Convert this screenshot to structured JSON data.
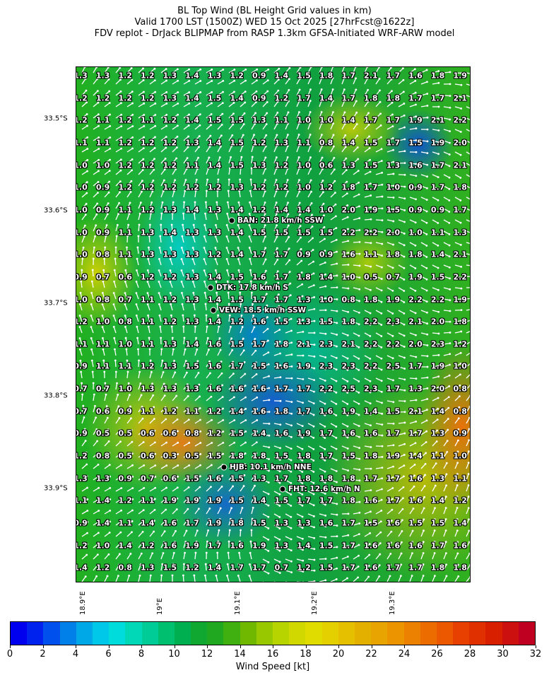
{
  "title": {
    "line1": "BL Top Wind (BL Height Grid values in km)",
    "line2": "Valid 1700 LST (1500Z) WED 15 Oct 2025 [27hrFcst@1622z]",
    "line3": "FDV replot - DrJack BLIPMAP from RASP 1.3km GFSA-Initiated WRF-ARW model"
  },
  "lat_labels": [
    "33.5°S",
    "33.6°S",
    "33.7°S",
    "33.8°S",
    "33.9°S"
  ],
  "lon_labels": [
    "18.9°E",
    "19°E",
    "19.1°E",
    "19.2°E",
    "19.3°E"
  ],
  "grid_values": [
    [
      "1.3",
      "1.3",
      "1.2",
      "1.2",
      "1.3",
      "1.4",
      "1.3",
      "1.2",
      "0.9",
      "1.4",
      "1.5",
      "1.8",
      "1.7",
      "2.1",
      "1.7",
      "1.6",
      "1.8",
      "1.9"
    ],
    [
      "1.2",
      "1.2",
      "1.2",
      "1.2",
      "1.3",
      "1.4",
      "1.5",
      "1.4",
      "0.9",
      "1.2",
      "1.7",
      "1.4",
      "1.7",
      "1.8",
      "1.8",
      "1.7",
      "1.7",
      "2.1"
    ],
    [
      "1.2",
      "1.1",
      "1.2",
      "1.1",
      "1.2",
      "1.4",
      "1.5",
      "1.5",
      "1.3",
      "1.1",
      "1.0",
      "1.0",
      "1.4",
      "1.7",
      "1.7",
      "1.9",
      "2.1",
      "2.2"
    ],
    [
      "1.1",
      "1.1",
      "1.2",
      "1.2",
      "1.2",
      "1.3",
      "1.4",
      "1.5",
      "1.2",
      "1.3",
      "1.1",
      "0.8",
      "1.4",
      "1.5",
      "1.7",
      "1.5",
      "1.9",
      "2.0"
    ],
    [
      "1.0",
      "1.0",
      "1.2",
      "1.2",
      "1.2",
      "1.1",
      "1.4",
      "1.5",
      "1.3",
      "1.2",
      "1.0",
      "0.6",
      "1.3",
      "1.5",
      "1.3",
      "1.6",
      "1.7",
      "2.1"
    ],
    [
      "1.0",
      "0.9",
      "1.2",
      "1.2",
      "1.2",
      "1.2",
      "1.2",
      "1.3",
      "1.2",
      "1.2",
      "1.0",
      "1.2",
      "1.8",
      "1.7",
      "1.0",
      "0.9",
      "1.7",
      "1.8"
    ],
    [
      "1.0",
      "0.9",
      "1.1",
      "1.2",
      "1.3",
      "1.4",
      "1.3",
      "1.4",
      "1.2",
      "1.4",
      "1.4",
      "1.0",
      "2.0",
      "1.9",
      "1.5",
      "0.9",
      "0.9",
      "1.7"
    ],
    [
      "1.0",
      "0.9",
      "1.1",
      "1.3",
      "1.4",
      "1.3",
      "1.3",
      "1.4",
      "1.5",
      "1.5",
      "1.5",
      "1.5",
      "2.2",
      "2.2",
      "2.0",
      "1.0",
      "1.1",
      "1.3"
    ],
    [
      "1.0",
      "0.8",
      "1.1",
      "1.3",
      "1.3",
      "1.3",
      "1.2",
      "1.4",
      "1.7",
      "1.7",
      "0.9",
      "0.9",
      "1.6",
      "1.1",
      "1.8",
      "1.8",
      "1.4",
      "2.1"
    ],
    [
      "0.9",
      "0.7",
      "0.6",
      "1.2",
      "1.2",
      "1.3",
      "1.4",
      "1.5",
      "1.6",
      "1.7",
      "1.8",
      "1.4",
      "1.0",
      "0.5",
      "0.7",
      "1.9",
      "1.5",
      "2.2"
    ],
    [
      "1.0",
      "0.8",
      "0.7",
      "1.1",
      "1.2",
      "1.3",
      "1.4",
      "1.5",
      "1.7",
      "1.7",
      "1.3",
      "1.0",
      "0.8",
      "1.8",
      "1.9",
      "2.2",
      "2.2",
      "1.9"
    ],
    [
      "1.2",
      "1.0",
      "0.8",
      "1.1",
      "1.2",
      "1.3",
      "1.4",
      "1.2",
      "1.6",
      "1.5",
      "1.3",
      "1.5",
      "1.8",
      "2.2",
      "2.3",
      "2.1",
      "2.0",
      "1.8"
    ],
    [
      "1.1",
      "1.1",
      "1.0",
      "1.1",
      "1.3",
      "1.4",
      "1.6",
      "1.5",
      "1.7",
      "1.8",
      "2.1",
      "2.3",
      "2.1",
      "2.2",
      "2.2",
      "2.0",
      "2.3",
      "1.2"
    ],
    [
      "0.9",
      "1.1",
      "1.1",
      "1.2",
      "1.3",
      "1.5",
      "1.6",
      "1.7",
      "1.5",
      "1.6",
      "1.9",
      "2.3",
      "2.3",
      "2.2",
      "2.5",
      "1.7",
      "1.9",
      "1.0"
    ],
    [
      "0.7",
      "0.7",
      "1.0",
      "1.3",
      "1.3",
      "1.3",
      "1.6",
      "1.6",
      "1.6",
      "1.7",
      "1.7",
      "2.2",
      "2.5",
      "2.3",
      "1.7",
      "1.3",
      "2.0",
      "0.8"
    ],
    [
      "0.7",
      "0.6",
      "0.9",
      "1.1",
      "1.2",
      "1.1",
      "1.2",
      "1.4",
      "1.6",
      "1.8",
      "1.7",
      "1.6",
      "1.9",
      "1.4",
      "1.5",
      "2.1",
      "1.4",
      "0.8"
    ],
    [
      "0.9",
      "0.5",
      "0.5",
      "0.6",
      "0.6",
      "0.8",
      "1.2",
      "1.5",
      "1.4",
      "1.6",
      "1.9",
      "1.7",
      "1.6",
      "1.6",
      "1.7",
      "1.7",
      "1.3",
      "0.9"
    ],
    [
      "1.2",
      "0.8",
      "0.5",
      "0.6",
      "0.3",
      "0.5",
      "1.5",
      "1.8",
      "1.8",
      "1.5",
      "1.8",
      "1.7",
      "1.5",
      "1.8",
      "1.9",
      "1.4",
      "1.1",
      "1.0"
    ],
    [
      "1.3",
      "1.3",
      "0.9",
      "0.7",
      "0.6",
      "1.5",
      "1.6",
      "1.5",
      "1.3",
      "1.7",
      "1.8",
      "1.8",
      "1.8",
      "1.7",
      "1.7",
      "1.6",
      "1.3",
      "1.1"
    ],
    [
      "1.1",
      "1.4",
      "1.2",
      "1.1",
      "1.9",
      "1.9",
      "1.9",
      "1.5",
      "1.4",
      "1.5",
      "1.7",
      "1.7",
      "1.8",
      "1.6",
      "1.7",
      "1.6",
      "1.4",
      "1.2"
    ],
    [
      "0.9",
      "1.4",
      "1.1",
      "1.4",
      "1.6",
      "1.7",
      "1.9",
      "1.8",
      "1.5",
      "1.3",
      "1.3",
      "1.6",
      "1.7",
      "1.5",
      "1.6",
      "1.5",
      "1.5",
      "1.4"
    ],
    [
      "1.2",
      "1.0",
      "1.4",
      "1.2",
      "1.6",
      "1.9",
      "1.7",
      "1.6",
      "1.9",
      "1.3",
      "1.4",
      "1.5",
      "1.7",
      "1.6",
      "1.6",
      "1.6",
      "1.7",
      "1.6"
    ],
    [
      "1.4",
      "1.2",
      "0.8",
      "1.3",
      "1.5",
      "1.2",
      "1.4",
      "1.7",
      "1.7",
      "0.7",
      "1.2",
      "1.5",
      "1.7",
      "1.6",
      "1.7",
      "1.7",
      "1.8",
      "1.8"
    ]
  ],
  "stations": [
    {
      "label": "BAN: 21.8 km/h SSW"
    },
    {
      "label": "DTK: 17.8 km/h S"
    },
    {
      "label": "VEW: 18.5 km/h SSW"
    },
    {
      "label": "HJB: 10.1 km/h NNE"
    },
    {
      "label": "FHT: 12.6 km/h N"
    }
  ],
  "colorbar": {
    "label": "Wind Speed [kt]",
    "ticks": [
      "0",
      "2",
      "4",
      "6",
      "8",
      "10",
      "12",
      "14",
      "16",
      "18",
      "20",
      "22",
      "24",
      "26",
      "28",
      "30",
      "32"
    ],
    "colors": [
      "#0000ee",
      "#0022ee",
      "#0050ee",
      "#0080e8",
      "#00a8e8",
      "#00c8e8",
      "#00dcdc",
      "#00d8b8",
      "#00cc98",
      "#00c070",
      "#00b050",
      "#10a830",
      "#20a820",
      "#40b010",
      "#70b800",
      "#98c800",
      "#b8d400",
      "#d0d800",
      "#e0dc00",
      "#e4d000",
      "#e4c000",
      "#e4b000",
      "#e8a400",
      "#ec9400",
      "#ec8000",
      "#ec6c00",
      "#ec5800",
      "#e84000",
      "#e03000",
      "#d82000",
      "#cc1010",
      "#c00020"
    ]
  }
}
